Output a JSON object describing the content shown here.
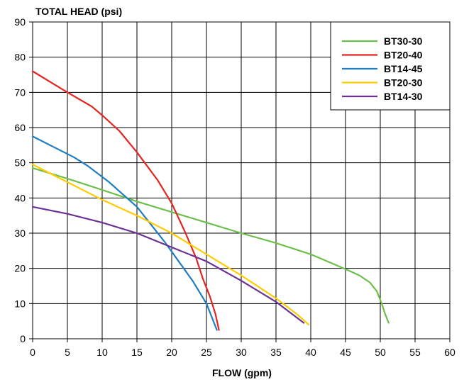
{
  "chart_data": {
    "type": "line",
    "title": "",
    "ylabel": "TOTAL HEAD (psi)",
    "xlabel": "FLOW (gpm)",
    "xlim": [
      0,
      60
    ],
    "ylim": [
      0,
      90
    ],
    "xticks": [
      0,
      5,
      10,
      15,
      20,
      25,
      30,
      35,
      40,
      45,
      50,
      55,
      60
    ],
    "yticks": [
      0,
      10,
      20,
      30,
      40,
      50,
      60,
      70,
      80,
      90
    ],
    "grid": true,
    "legend_position": "top-right",
    "series": [
      {
        "name": "BT30-30",
        "color": "#6cbf4a",
        "points": [
          [
            0,
            48.5
          ],
          [
            5,
            45.5
          ],
          [
            10,
            42.3
          ],
          [
            15,
            39
          ],
          [
            20,
            36
          ],
          [
            25,
            33
          ],
          [
            30,
            30
          ],
          [
            35,
            27.2
          ],
          [
            40,
            24
          ],
          [
            45,
            19.8
          ],
          [
            47,
            18
          ],
          [
            48.5,
            16
          ],
          [
            49.5,
            13.5
          ],
          [
            50.2,
            10
          ],
          [
            50.7,
            7
          ],
          [
            51.2,
            4.5
          ]
        ]
      },
      {
        "name": "BT20-40",
        "color": "#e52421",
        "points": [
          [
            0,
            76
          ],
          [
            2.5,
            73
          ],
          [
            5,
            70
          ],
          [
            8.5,
            66
          ],
          [
            10,
            63.5
          ],
          [
            12.5,
            59
          ],
          [
            15,
            53
          ],
          [
            18,
            45
          ],
          [
            20,
            38.5
          ],
          [
            22,
            30
          ],
          [
            23.5,
            23
          ],
          [
            24.5,
            17
          ],
          [
            25.5,
            12
          ],
          [
            26.3,
            7
          ],
          [
            26.8,
            2.5
          ]
        ]
      },
      {
        "name": "BT14-45",
        "color": "#1f7dc0",
        "points": [
          [
            0,
            57.5
          ],
          [
            3,
            54.5
          ],
          [
            6,
            51.5
          ],
          [
            8,
            49
          ],
          [
            11,
            44.5
          ],
          [
            13,
            41
          ],
          [
            15,
            37.5
          ],
          [
            17,
            32.5
          ],
          [
            19,
            27.5
          ],
          [
            21,
            22
          ],
          [
            23,
            16.5
          ],
          [
            25,
            10
          ],
          [
            26.5,
            2.5
          ]
        ]
      },
      {
        "name": "BT20-30",
        "color": "#ffcc00",
        "points": [
          [
            0,
            49.5
          ],
          [
            5,
            44.5
          ],
          [
            10,
            39.5
          ],
          [
            15,
            35
          ],
          [
            20,
            30
          ],
          [
            25,
            24
          ],
          [
            30,
            18
          ],
          [
            35,
            11.5
          ],
          [
            38,
            7
          ],
          [
            39.7,
            4
          ]
        ]
      },
      {
        "name": "BT14-30",
        "color": "#6a3295",
        "points": [
          [
            0,
            37.5
          ],
          [
            5,
            35.5
          ],
          [
            10,
            33
          ],
          [
            15,
            30
          ],
          [
            20,
            26
          ],
          [
            25,
            22
          ],
          [
            30,
            16.5
          ],
          [
            35,
            10.5
          ],
          [
            39,
            4.5
          ]
        ]
      }
    ],
    "legend_order": [
      "BT30-30",
      "BT20-40",
      "BT14-45",
      "BT20-30",
      "BT14-30"
    ]
  }
}
